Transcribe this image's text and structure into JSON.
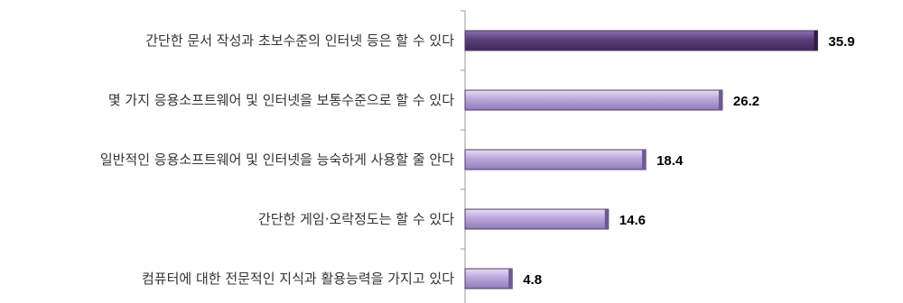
{
  "chart_data": {
    "type": "bar",
    "orientation": "horizontal",
    "categories": [
      "간단한 문서 작성과 초보수준의 인터넷 등은 할 수 있다",
      "몇 가지 응용소프트웨어 및 인터넷을 보통수준으로 할 수 있다",
      "일반적인 응용소프트웨어 및 인터넷을 능숙하게 사용할 줄 안다",
      "간단한 게임·오락정도는 할 수 있다",
      "컴퓨터에 대한 전문적인 지식과 활용능력을 가지고 있다"
    ],
    "values": [
      35.9,
      26.2,
      18.4,
      14.6,
      4.8
    ],
    "value_labels": [
      "35.9",
      "26.2",
      "18.4",
      "14.6",
      "4.8"
    ],
    "xlim": [
      0,
      40
    ],
    "grid": false,
    "legend": "none",
    "colors": {
      "highlight_bar": "#5a3f7e",
      "highlight_bar_light": "#8a72ad",
      "bar": "#b9a7dc",
      "bar_light": "#e6ddf5",
      "bar_edge": "#4b3a63",
      "axis": "#9a9a9a"
    }
  }
}
